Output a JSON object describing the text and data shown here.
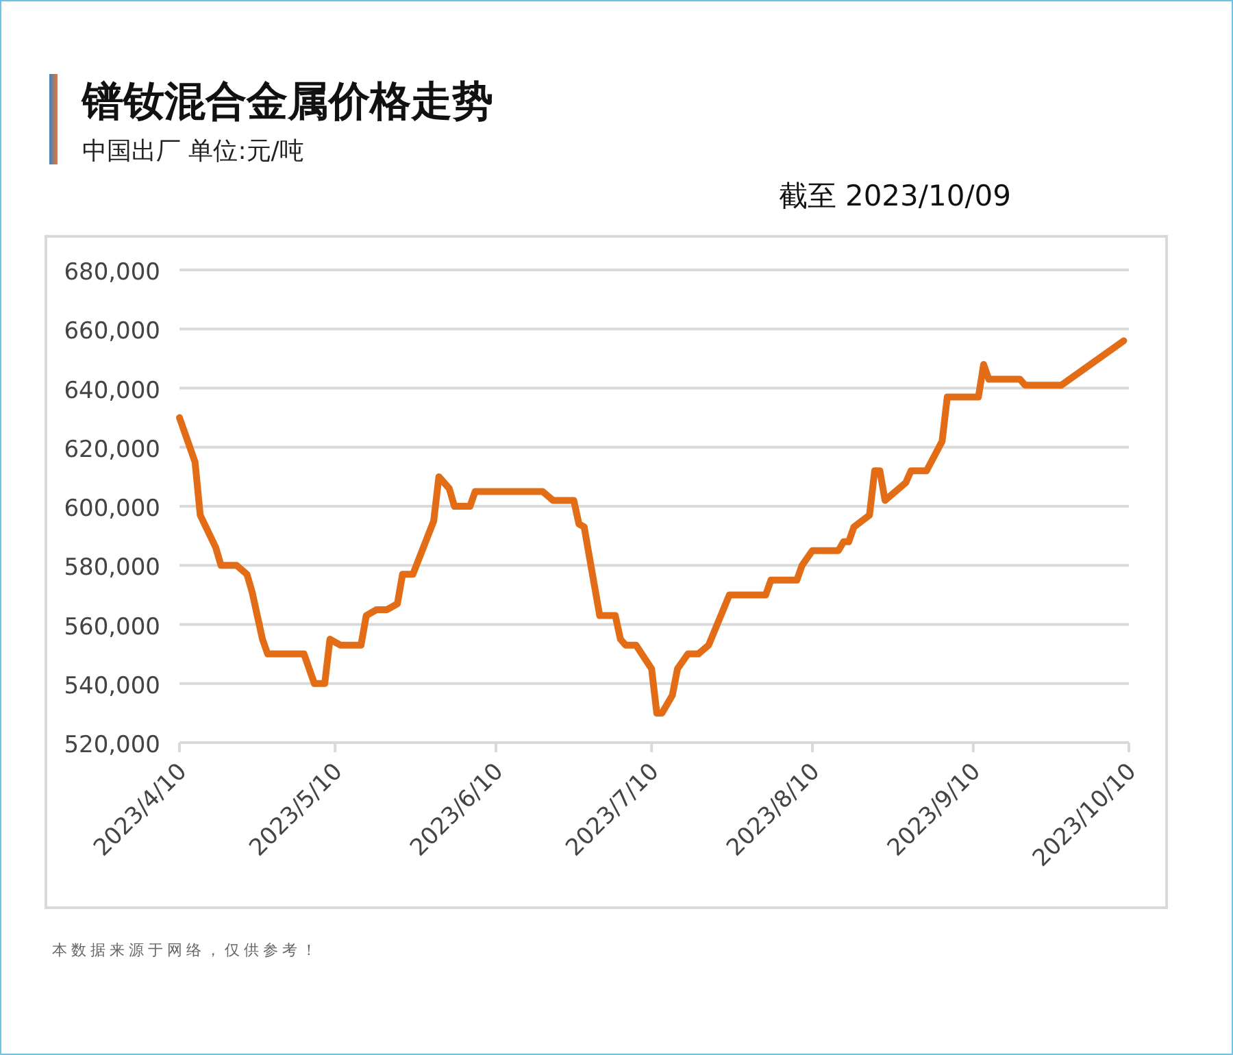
{
  "chart_data": {
    "type": "line",
    "title": "镨钕混合金属价格走势",
    "subtitle": "中国出厂  单位:元/吨",
    "annotations": [
      "截至 2023/10/09",
      "本数据来源于网络，仅供参考！"
    ],
    "series": [
      {
        "color": "#e36c17",
        "x": [
          "2023-04-10",
          "2023-04-13",
          "2023-04-14",
          "2023-04-17",
          "2023-04-18",
          "2023-04-21",
          "2023-04-23",
          "2023-04-24",
          "2023-04-26",
          "2023-04-27",
          "2023-05-04",
          "2023-05-06",
          "2023-05-08",
          "2023-05-09",
          "2023-05-11",
          "2023-05-15",
          "2023-05-16",
          "2023-05-18",
          "2023-05-20",
          "2023-05-22",
          "2023-05-23",
          "2023-05-25",
          "2023-05-29",
          "2023-05-30",
          "2023-06-01",
          "2023-06-02",
          "2023-06-05",
          "2023-06-06",
          "2023-06-19",
          "2023-06-21",
          "2023-06-25",
          "2023-06-26",
          "2023-06-27",
          "2023-06-30",
          "2023-07-03",
          "2023-07-04",
          "2023-07-05",
          "2023-07-07",
          "2023-07-10",
          "2023-07-11",
          "2023-07-12",
          "2023-07-14",
          "2023-07-15",
          "2023-07-17",
          "2023-07-19",
          "2023-07-21",
          "2023-07-25",
          "2023-08-01",
          "2023-08-02",
          "2023-08-07",
          "2023-08-08",
          "2023-08-10",
          "2023-08-15",
          "2023-08-16",
          "2023-08-17",
          "2023-08-18",
          "2023-08-21",
          "2023-08-22",
          "2023-08-23",
          "2023-08-24",
          "2023-08-28",
          "2023-08-29",
          "2023-09-01",
          "2023-09-04",
          "2023-09-05",
          "2023-09-11",
          "2023-09-12",
          "2023-09-13",
          "2023-09-19",
          "2023-09-20",
          "2023-09-27",
          "2023-10-09"
        ],
        "values": [
          630000,
          615000,
          597000,
          586000,
          580000,
          580000,
          577000,
          571000,
          555000,
          550000,
          550000,
          540000,
          540000,
          555000,
          553000,
          553000,
          563000,
          565000,
          565000,
          567000,
          577000,
          577000,
          595000,
          610000,
          606000,
          600000,
          600000,
          605000,
          605000,
          602000,
          602000,
          594000,
          593000,
          563000,
          563000,
          555000,
          553000,
          553000,
          545000,
          530000,
          530000,
          536000,
          545000,
          550000,
          550000,
          553000,
          570000,
          570000,
          575000,
          575000,
          580000,
          585000,
          585000,
          588000,
          588000,
          593000,
          597000,
          612000,
          612000,
          602000,
          608000,
          612000,
          612000,
          622000,
          637000,
          637000,
          648000,
          643000,
          643000,
          641000,
          641000,
          656000
        ]
      }
    ],
    "xlim": [
      "2023-04-10",
      "2023-10-10"
    ],
    "xticks": [
      {
        "value": "2023-04-10",
        "label": "2023/4/10"
      },
      {
        "value": "2023-05-10",
        "label": "2023/5/10"
      },
      {
        "value": "2023-06-10",
        "label": "2023/6/10"
      },
      {
        "value": "2023-07-10",
        "label": "2023/7/10"
      },
      {
        "value": "2023-08-10",
        "label": "2023/8/10"
      },
      {
        "value": "2023-09-10",
        "label": "2023/9/10"
      },
      {
        "value": "2023-10-10",
        "label": "2023/10/10"
      }
    ],
    "ylim": [
      520000,
      680000
    ],
    "yticks": [
      {
        "value": 520000,
        "label": "520,000"
      },
      {
        "value": 540000,
        "label": "540,000"
      },
      {
        "value": 560000,
        "label": "560,000"
      },
      {
        "value": 580000,
        "label": "580,000"
      },
      {
        "value": 600000,
        "label": "600,000"
      },
      {
        "value": 620000,
        "label": "620,000"
      },
      {
        "value": 640000,
        "label": "640,000"
      },
      {
        "value": 660000,
        "label": "660,000"
      },
      {
        "value": 680000,
        "label": "680,000"
      }
    ],
    "grid": "y",
    "line_style": "solid",
    "marker": "none"
  }
}
